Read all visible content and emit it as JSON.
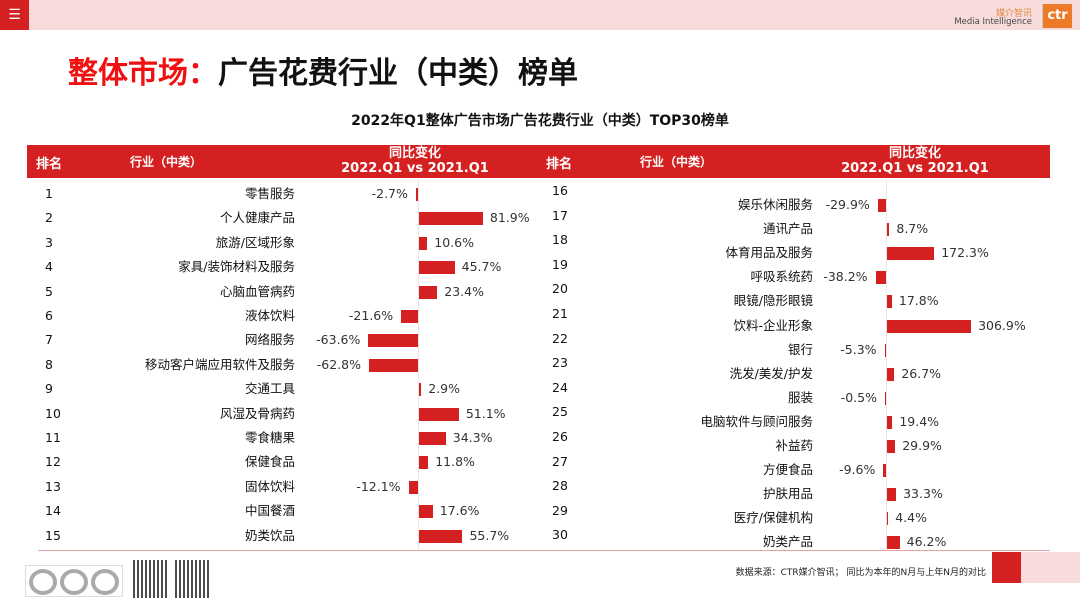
{
  "header": {
    "menu_icon": "menu-icon",
    "logo_cn": "媒介智讯",
    "logo_en": "Media Intelligence",
    "logo_mark": "ctr"
  },
  "page": {
    "title_red": "整体市场：",
    "title_black": "广告花费行业（中类）榜单"
  },
  "colors": {
    "accent": "#d42020",
    "title_red": "#f01010",
    "topbar": "#f8dcdc"
  },
  "table_header": {
    "rank": "排名",
    "industry": "行业（中类）",
    "change_line1": "同比变化",
    "change_line2": "2022.Q1 vs 2021.Q1"
  },
  "footer": {
    "source": "数据来源：CTR媒介智讯； 同比为本年的N月与上年N月的对比"
  },
  "chart_data": {
    "type": "bar",
    "title": "2022年Q1整体广告市场广告花费行业（中类）TOP30榜单",
    "unit": "%",
    "ranks": [
      1,
      2,
      3,
      4,
      5,
      6,
      7,
      8,
      9,
      10,
      11,
      12,
      13,
      14,
      15,
      16,
      17,
      18,
      19,
      20,
      21,
      22,
      23,
      24,
      25,
      26,
      27,
      28,
      29,
      30
    ],
    "categories": [
      "零售服务",
      "个人健康产品",
      "旅游/区域形象",
      "家具/装饰材料及服务",
      "心脑血管病药",
      "液体饮料",
      "网络服务",
      "移动客户端应用软件及服务",
      "交通工具",
      "风湿及骨病药",
      "零食糖果",
      "保健食品",
      "固体饮料",
      "中国餐酒",
      "奶类饮品",
      "娱乐休闲服务",
      "通讯产品",
      "体育用品及服务",
      "呼吸系统药",
      "眼镜/隐形眼镜",
      "饮料-企业形象",
      "银行",
      "洗发/美发/护发",
      "服装",
      "电脑软件与顾问服务",
      "补益药",
      "方便食品",
      "护肤用品",
      "医疗/保健机构",
      "奶类产品"
    ],
    "values": [
      -2.7,
      81.9,
      10.6,
      45.7,
      23.4,
      -21.6,
      -63.6,
      -62.8,
      2.9,
      51.1,
      34.3,
      11.8,
      -12.1,
      17.6,
      55.7,
      -29.9,
      8.7,
      172.3,
      -38.2,
      17.8,
      306.9,
      -5.3,
      26.7,
      -0.5,
      19.4,
      29.9,
      -9.6,
      33.3,
      4.4,
      46.2
    ],
    "labels": [
      "-2.7%",
      "81.9%",
      "10.6%",
      "45.7%",
      "23.4%",
      "-21.6%",
      "-63.6%",
      "-62.8%",
      "2.9%",
      "51.1%",
      "34.3%",
      "11.8%",
      "-12.1%",
      "17.6%",
      "55.7%",
      "-29.9%",
      "8.7%",
      "172.3%",
      "-38.2%",
      "17.8%",
      "306.9%",
      "-5.3%",
      "26.7%",
      "-0.5%",
      "19.4%",
      "29.9%",
      "-9.6%",
      "33.3%",
      "4.4%",
      "46.2%"
    ]
  }
}
